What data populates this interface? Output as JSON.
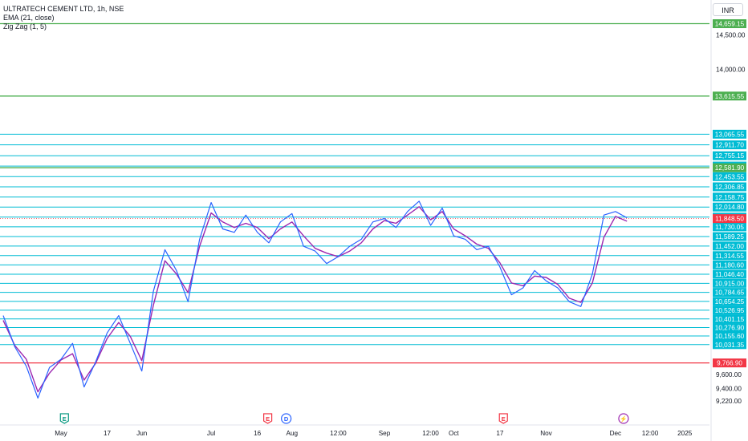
{
  "header": {
    "symbol_line": "ULTRATECH CEMENT LTD, 1h, NSE",
    "ema_label": "EMA (21, close)",
    "zigzag_label": "Zig Zag (1, 5)",
    "currency_button": "INR"
  },
  "colors": {
    "level_line": "#00bcd4",
    "green_line": "#4caf50",
    "red_line": "#f23645",
    "price_line": "#2962ff",
    "ema_line": "#9c27b0",
    "zigzag": "#f23645",
    "candle_up": "#089981",
    "candle_down": "#f23645"
  },
  "chart_data": {
    "type": "line",
    "symbol": "ULTRATECH CEMENT LTD",
    "interval": "1h",
    "exchange": "NSE",
    "currency": "INR",
    "ylim": [
      9150,
      14700
    ],
    "y_ticks": [
      "14,500.00",
      "14,000.00",
      "9,600.00",
      "9,400.00",
      "9,220.00"
    ],
    "x_tick_labels": [
      "May",
      "17",
      "Jun",
      "Jul",
      "16",
      "Aug",
      "12:00",
      "Sep",
      "12:00",
      "Oct",
      "17",
      "Nov",
      "Dec",
      "12:00",
      "2025"
    ],
    "x_tick_index": [
      5,
      9,
      12,
      18,
      22,
      25,
      29,
      33,
      37,
      39,
      43,
      47,
      53,
      56,
      59
    ],
    "last_price": "11,848.50",
    "levels_cyan": [
      "13,065.55",
      "12,911.70",
      "12,755.15",
      "12,606.40",
      "12,453.55",
      "12,306.85",
      "12,158.75",
      "12,014.80",
      "11,869.95",
      "11,730.05",
      "11,589.25",
      "11,452.00",
      "11,314.55",
      "11,180.60",
      "11,046.40",
      "10,915.00",
      "10,784.65",
      "10,654.25",
      "10,526.95",
      "10,401.15",
      "10,276.90",
      "10,155.60",
      "10,031.35"
    ],
    "levels_green": [
      "14,659.15",
      "13,615.55",
      "12,581.90"
    ],
    "levels_red": [
      "9,766.90"
    ],
    "events": [
      {
        "symbol": "E",
        "index": 5.3,
        "color": "#089981"
      },
      {
        "symbol": "E",
        "index": 22.9,
        "color": "#f23645"
      },
      {
        "symbol": "D",
        "index": 24.5,
        "color": "#2962ff"
      },
      {
        "symbol": "E",
        "index": 43.3,
        "color": "#f23645"
      },
      {
        "symbol": "⚡",
        "index": 53.7,
        "color": "#9c27b0"
      }
    ],
    "series": [
      {
        "name": "EMA (21, close)",
        "values": [
          10380,
          10020,
          9820,
          9350,
          9620,
          9810,
          9900,
          9520,
          9760,
          10120,
          10350,
          10150,
          9800,
          10600,
          11240,
          11050,
          10780,
          11450,
          11930,
          11800,
          11720,
          11780,
          11720,
          11560,
          11700,
          11800,
          11600,
          11420,
          11350,
          11300,
          11380,
          11500,
          11700,
          11820,
          11780,
          11900,
          12020,
          11830,
          11950,
          11700,
          11600,
          11480,
          11420,
          11210,
          10920,
          10880,
          11020,
          11000,
          10900,
          10700,
          10640,
          10920,
          11580,
          11880,
          11810
        ]
      },
      {
        "name": "Close",
        "values": [
          10450,
          10000,
          9720,
          9260,
          9700,
          9820,
          10050,
          9420,
          9780,
          10200,
          10450,
          10050,
          9650,
          10800,
          11400,
          11100,
          10650,
          11550,
          12080,
          11700,
          11650,
          11900,
          11650,
          11500,
          11800,
          11920,
          11450,
          11380,
          11200,
          11300,
          11450,
          11550,
          11800,
          11850,
          11720,
          11950,
          12100,
          11750,
          12000,
          11600,
          11550,
          11400,
          11450,
          11150,
          10750,
          10850,
          11100,
          10950,
          10850,
          10650,
          10580,
          11050,
          11900,
          11950,
          11860
        ]
      }
    ],
    "n_points": 62
  }
}
